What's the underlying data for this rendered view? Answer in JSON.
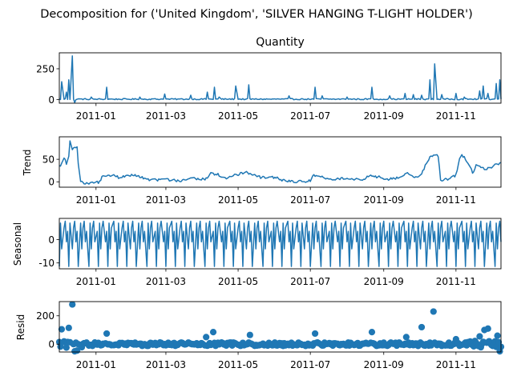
{
  "figure": {
    "suptitle": "Decomposition for ('United Kingdom', 'SILVER HANGING T-LIGHT HOLDER')"
  },
  "chart_data": [
    {
      "type": "line",
      "title": "Quantity",
      "ylabel": "",
      "xlim": [
        "2010-12-01",
        "2011-12-09"
      ],
      "ylim": [
        -30,
        380
      ],
      "yticks": [
        0,
        250
      ],
      "xticks": [
        "2011-01",
        "2011-03",
        "2011-05",
        "2011-07",
        "2011-09",
        "2011-11"
      ],
      "color": "#1f77b4",
      "pattern": "spiky",
      "baseline": 3,
      "noise": 5,
      "clip": [
        -30,
        370
      ],
      "spikes": [
        [
          "2010-12-03",
          145
        ],
        [
          "2010-12-07",
          60
        ],
        [
          "2010-12-09",
          160
        ],
        [
          "2010-12-12",
          355
        ],
        [
          "2010-12-14",
          -25
        ],
        [
          "2010-12-28",
          20
        ],
        [
          "2011-01-10",
          100
        ],
        [
          "2011-02-07",
          20
        ],
        [
          "2011-02-28",
          45
        ],
        [
          "2011-03-22",
          35
        ],
        [
          "2011-04-05",
          60
        ],
        [
          "2011-04-11",
          100
        ],
        [
          "2011-04-15",
          20
        ],
        [
          "2011-04-29",
          110
        ],
        [
          "2011-05-10",
          120
        ],
        [
          "2011-05-21",
          40
        ],
        [
          "2011-06-13",
          30
        ],
        [
          "2011-07-05",
          100
        ],
        [
          "2011-07-11",
          30
        ],
        [
          "2011-08-01",
          20
        ],
        [
          "2011-08-22",
          100
        ],
        [
          "2011-09-06",
          30
        ],
        [
          "2011-09-19",
          50
        ],
        [
          "2011-09-26",
          40
        ],
        [
          "2011-10-03",
          35
        ],
        [
          "2011-10-10",
          160
        ],
        [
          "2011-10-14",
          290
        ],
        [
          "2011-10-20",
          40
        ],
        [
          "2011-11-01",
          50
        ],
        [
          "2011-11-08",
          20
        ],
        [
          "2011-11-21",
          70
        ],
        [
          "2011-11-24",
          110
        ],
        [
          "2011-11-28",
          50
        ],
        [
          "2011-12-05",
          130
        ],
        [
          "2011-12-08",
          160
        ]
      ]
    },
    {
      "type": "line",
      "title": "",
      "ylabel": "Trend",
      "xlim": [
        "2010-12-01",
        "2011-12-09"
      ],
      "ylim": [
        -12,
        100
      ],
      "yticks": [
        0,
        50
      ],
      "xticks": [
        "2011-01",
        "2011-03",
        "2011-05",
        "2011-07",
        "2011-09",
        "2011-11"
      ],
      "color": "#1f77b4",
      "pattern": "steps",
      "noise": 3,
      "clip": [
        -5,
        95
      ],
      "points": [
        [
          "2010-12-01",
          35
        ],
        [
          "2010-12-03",
          40
        ],
        [
          "2010-12-05",
          55
        ],
        [
          "2010-12-07",
          40
        ],
        [
          "2010-12-09",
          55
        ],
        [
          "2010-12-10",
          92
        ],
        [
          "2010-12-12",
          70
        ],
        [
          "2010-12-14",
          75
        ],
        [
          "2010-12-16",
          80
        ],
        [
          "2010-12-18",
          5
        ],
        [
          "2010-12-22",
          -5
        ],
        [
          "2011-01-05",
          0
        ],
        [
          "2011-01-06",
          15
        ],
        [
          "2011-01-15",
          15
        ],
        [
          "2011-01-20",
          10
        ],
        [
          "2011-02-03",
          15
        ],
        [
          "2011-02-15",
          3
        ],
        [
          "2011-03-01",
          5
        ],
        [
          "2011-03-12",
          2
        ],
        [
          "2011-03-25",
          8
        ],
        [
          "2011-04-03",
          5
        ],
        [
          "2011-04-08",
          20
        ],
        [
          "2011-04-15",
          15
        ],
        [
          "2011-04-22",
          5
        ],
        [
          "2011-04-26",
          15
        ],
        [
          "2011-05-08",
          20
        ],
        [
          "2011-05-20",
          10
        ],
        [
          "2011-06-01",
          10
        ],
        [
          "2011-06-10",
          2
        ],
        [
          "2011-06-20",
          0
        ],
        [
          "2011-07-01",
          2
        ],
        [
          "2011-07-04",
          15
        ],
        [
          "2011-07-12",
          10
        ],
        [
          "2011-07-20",
          5
        ],
        [
          "2011-08-01",
          8
        ],
        [
          "2011-08-15",
          5
        ],
        [
          "2011-08-20",
          15
        ],
        [
          "2011-08-28",
          10
        ],
        [
          "2011-09-05",
          5
        ],
        [
          "2011-09-15",
          10
        ],
        [
          "2011-09-20",
          20
        ],
        [
          "2011-09-28",
          10
        ],
        [
          "2011-10-02",
          15
        ],
        [
          "2011-10-06",
          35
        ],
        [
          "2011-10-10",
          55
        ],
        [
          "2011-10-14",
          60
        ],
        [
          "2011-10-17",
          58
        ],
        [
          "2011-10-19",
          5
        ],
        [
          "2011-10-26",
          5
        ],
        [
          "2011-11-01",
          15
        ],
        [
          "2011-11-05",
          60
        ],
        [
          "2011-11-08",
          55
        ],
        [
          "2011-11-12",
          40
        ],
        [
          "2011-11-15",
          20
        ],
        [
          "2011-11-18",
          35
        ],
        [
          "2011-11-24",
          30
        ],
        [
          "2011-12-01",
          30
        ],
        [
          "2011-12-05",
          40
        ],
        [
          "2011-12-09",
          42
        ]
      ]
    },
    {
      "type": "line",
      "title": "",
      "ylabel": "Seasonal",
      "xlim": [
        "2010-12-01",
        "2011-12-09"
      ],
      "ylim": [
        -12.5,
        9
      ],
      "yticks": [
        -10,
        0
      ],
      "xticks": [
        "2011-01",
        "2011-03",
        "2011-05",
        "2011-07",
        "2011-09",
        "2011-11"
      ],
      "color": "#1f77b4",
      "pattern": "periodic",
      "cycle": [
        -11.5,
        7,
        -4,
        5,
        7.8,
        -1,
        3.5
      ]
    },
    {
      "type": "scatter",
      "title": "",
      "ylabel": "Resid",
      "xlim": [
        "2010-12-01",
        "2011-12-09"
      ],
      "ylim": [
        -55,
        300
      ],
      "yticks": [
        0,
        200
      ],
      "xticks": [
        "2011-01",
        "2011-03",
        "2011-05",
        "2011-07",
        "2011-09",
        "2011-11"
      ],
      "color": "#1f77b4",
      "pattern": "resid",
      "baseline": 0,
      "noise": 12,
      "extra_noise": [
        [
          "2010-12-01",
          "2010-12-20",
          25
        ],
        [
          "2011-11-10",
          "2011-12-09",
          25
        ]
      ],
      "outliers": [
        [
          "2010-12-03",
          105
        ],
        [
          "2010-12-09",
          115
        ],
        [
          "2010-12-12",
          280
        ],
        [
          "2010-12-14",
          -50
        ],
        [
          "2010-12-16",
          -45
        ],
        [
          "2011-01-10",
          75
        ],
        [
          "2011-04-04",
          50
        ],
        [
          "2011-04-10",
          85
        ],
        [
          "2011-04-30",
          85
        ],
        [
          "2011-05-11",
          65
        ],
        [
          "2011-07-05",
          75
        ],
        [
          "2011-08-22",
          85
        ],
        [
          "2011-09-20",
          50
        ],
        [
          "2011-10-03",
          120
        ],
        [
          "2011-10-13",
          230
        ],
        [
          "2011-11-01",
          35
        ],
        [
          "2011-11-21",
          55
        ],
        [
          "2011-11-25",
          100
        ],
        [
          "2011-11-28",
          110
        ],
        [
          "2011-12-06",
          60
        ],
        [
          "2011-12-08",
          -50
        ]
      ]
    }
  ]
}
